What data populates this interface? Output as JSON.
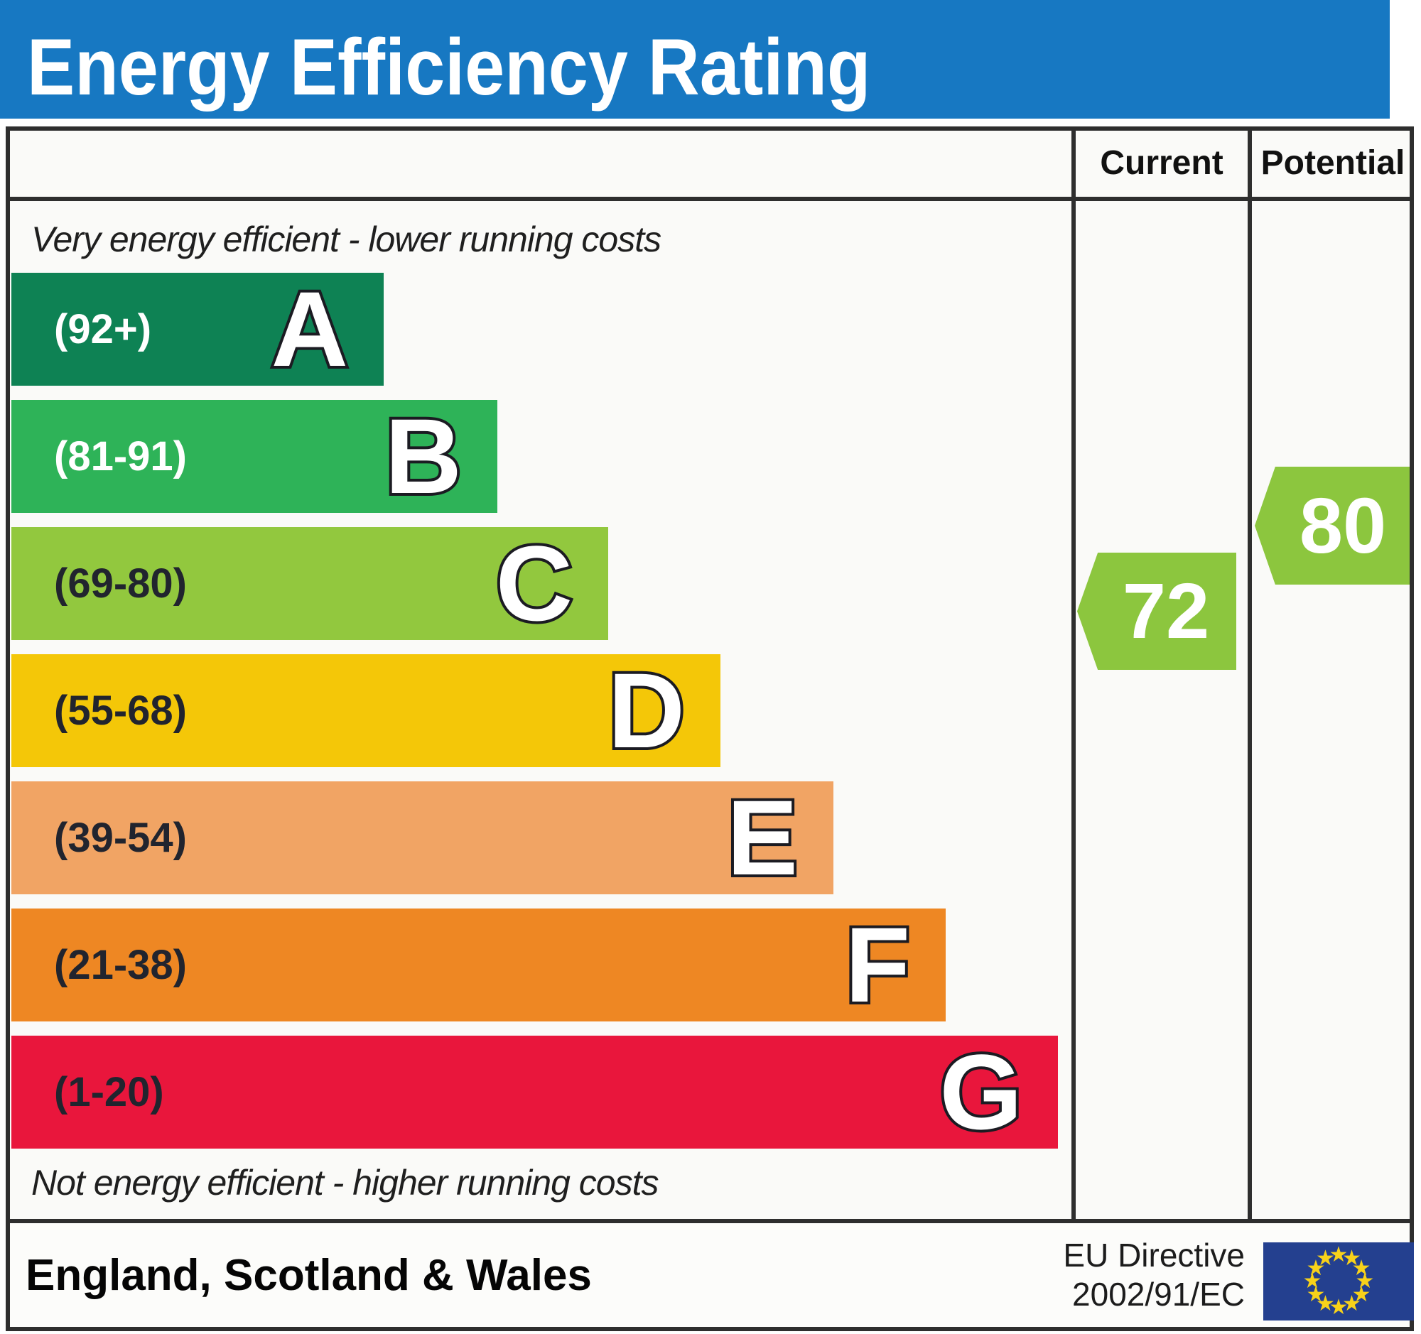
{
  "title": "Energy Efficiency Rating",
  "columns": {
    "current": "Current",
    "potential": "Potential"
  },
  "notes": {
    "top": "Very energy efficient - lower running costs",
    "bottom": "Not energy efficient - higher running costs"
  },
  "bands": [
    {
      "letter": "A",
      "range": "(92+)",
      "color": "#0e8254",
      "text_color": "#ffffff"
    },
    {
      "letter": "B",
      "range": "(81-91)",
      "color": "#2eb358",
      "text_color": "#ffffff"
    },
    {
      "letter": "C",
      "range": "(69-80)",
      "color": "#92c83e",
      "text_color": "#21242e"
    },
    {
      "letter": "D",
      "range": "(55-68)",
      "color": "#f4c708",
      "text_color": "#21242e"
    },
    {
      "letter": "E",
      "range": "(39-54)",
      "color": "#f1a464",
      "text_color": "#21242e"
    },
    {
      "letter": "F",
      "range": "(21-38)",
      "color": "#ee8723",
      "text_color": "#21242e"
    },
    {
      "letter": "G",
      "range": "(1-20)",
      "color": "#e9163c",
      "text_color": "#21242e"
    }
  ],
  "ratings": {
    "current": {
      "value": "72",
      "color": "#8cc63e"
    },
    "potential": {
      "value": "80",
      "color": "#8cc63e"
    }
  },
  "footer": {
    "region": "England, Scotland & Wales",
    "directive_line1": "EU Directive",
    "directive_line2": "2002/91/EC"
  },
  "flag": {
    "background": "#24408f",
    "star_color": "#f8d21a",
    "star_count": 12
  },
  "chart_data": {
    "type": "bar",
    "title": "Energy Efficiency Rating",
    "categories": [
      "A",
      "B",
      "C",
      "D",
      "E",
      "F",
      "G"
    ],
    "band_ranges": [
      "92+",
      "81-91",
      "69-80",
      "55-68",
      "39-54",
      "21-38",
      "1-20"
    ],
    "band_colors": [
      "#0e8254",
      "#2eb358",
      "#92c83e",
      "#f4c708",
      "#f1a464",
      "#ee8723",
      "#e9163c"
    ],
    "series": [
      {
        "name": "Current",
        "values": [
          72
        ]
      },
      {
        "name": "Potential",
        "values": [
          80
        ]
      }
    ],
    "current_rating": 72,
    "current_band": "C",
    "potential_rating": 80,
    "potential_band": "C",
    "value_range": [
      1,
      100
    ],
    "top_label": "Very energy efficient - lower running costs",
    "bottom_label": "Not energy efficient - higher running costs",
    "region": "England, Scotland & Wales",
    "directive": "EU Directive 2002/91/EC"
  }
}
